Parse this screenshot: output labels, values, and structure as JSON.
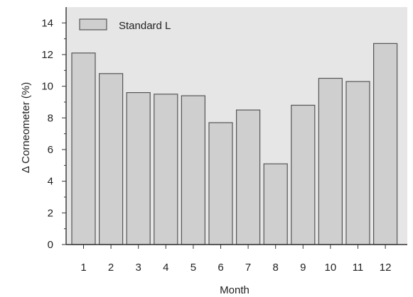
{
  "chart_data": {
    "type": "bar",
    "categories": [
      "1",
      "2",
      "3",
      "4",
      "5",
      "6",
      "7",
      "8",
      "9",
      "10",
      "11",
      "12"
    ],
    "series": [
      {
        "name": "Standard L",
        "values": [
          12.1,
          10.8,
          9.6,
          9.5,
          9.4,
          7.7,
          8.5,
          5.1,
          8.8,
          10.5,
          10.3,
          12.7
        ]
      }
    ],
    "xlabel": "Month",
    "ylabel": "Δ Corneometer (%)",
    "ylim": [
      0,
      15
    ],
    "yticks": [
      0,
      2,
      4,
      6,
      8,
      10,
      12,
      14
    ],
    "legend_position": "top-left",
    "grid": false,
    "colors": {
      "plot_background": "#e6e6e6",
      "bar_fill": "#cfcfcf",
      "bar_stroke": "#555555",
      "axis": "#333333"
    }
  }
}
